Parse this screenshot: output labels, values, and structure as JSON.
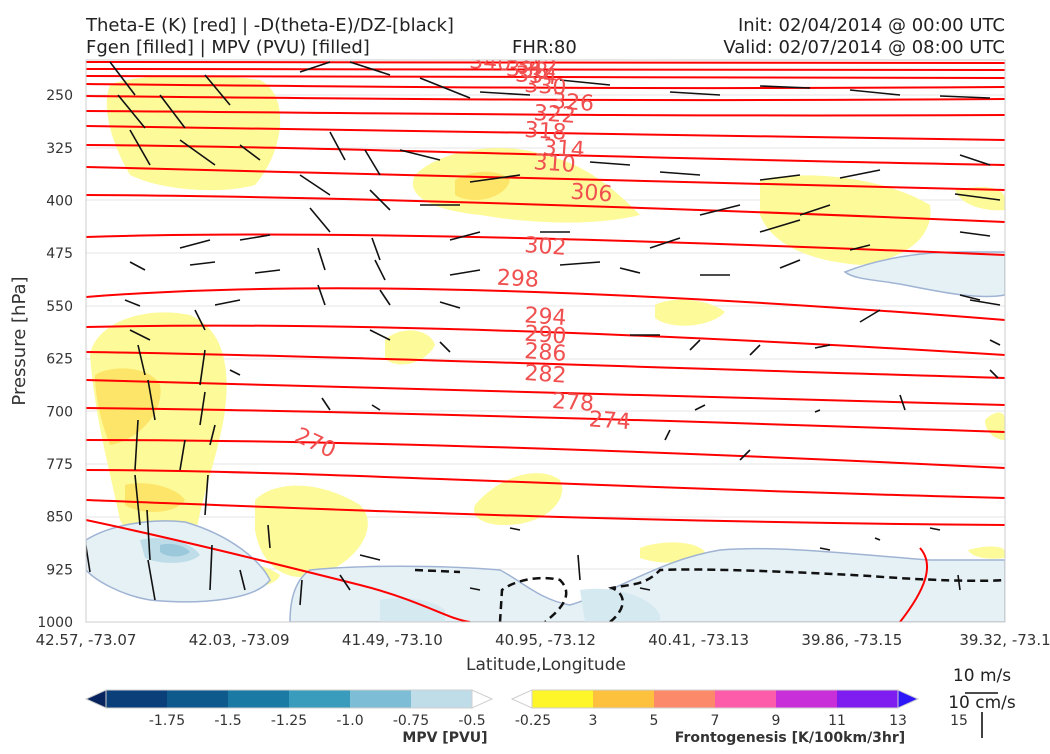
{
  "header": {
    "title_left_1": "Theta-E (K) [red] | -D(theta-E)/DZ-[black]",
    "title_left_2": "Fgen [filled] | MPV (PVU) [filled]",
    "fhr": "FHR:80",
    "init": "Init: 02/04/2014 @ 00:00 UTC",
    "valid": "Valid: 02/07/2014 @ 08:00 UTC"
  },
  "chart_data": {
    "type": "cross-section",
    "xlabel": "Latitude,Longitude",
    "ylabel": "Pressure [hPa]",
    "x_ticks": [
      "42.57, -73.07",
      "42.03, -73.09",
      "41.49, -73.10",
      "40.95, -73.12",
      "40.41, -73.13",
      "39.86, -73.15",
      "39.32, -73.1"
    ],
    "y_ticks": [
      250,
      325,
      400,
      475,
      550,
      625,
      700,
      775,
      850,
      925,
      1000
    ],
    "ylim": [
      1000,
      200
    ],
    "theta_e_labels": [
      {
        "value": "340",
        "p": 202,
        "x": 0.44
      },
      {
        "value": "342",
        "p": 208,
        "x": 0.49
      },
      {
        "value": "338",
        "p": 213,
        "x": 0.48
      },
      {
        "value": "334",
        "p": 221,
        "x": 0.49
      },
      {
        "value": "330",
        "p": 236,
        "x": 0.5
      },
      {
        "value": "326",
        "p": 259,
        "x": 0.53
      },
      {
        "value": "322",
        "p": 276,
        "x": 0.51
      },
      {
        "value": "318",
        "p": 300,
        "x": 0.5
      },
      {
        "value": "314",
        "p": 325,
        "x": 0.52
      },
      {
        "value": "310",
        "p": 346,
        "x": 0.51
      },
      {
        "value": "306",
        "p": 388,
        "x": 0.55
      },
      {
        "value": "302",
        "p": 464,
        "x": 0.5
      },
      {
        "value": "298",
        "p": 510,
        "x": 0.47
      },
      {
        "value": "294",
        "p": 564,
        "x": 0.5
      },
      {
        "value": "290",
        "p": 590,
        "x": 0.5
      },
      {
        "value": "286",
        "p": 615,
        "x": 0.5
      },
      {
        "value": "282",
        "p": 646,
        "x": 0.5
      },
      {
        "value": "278",
        "p": 686,
        "x": 0.53
      },
      {
        "value": "274",
        "p": 712,
        "x": 0.57
      },
      {
        "value": "270",
        "p": 744,
        "x": 0.25
      }
    ],
    "mpv_colorbar": {
      "label": "MPV [PVU]",
      "ticks": [
        "-1.75",
        "-1.5",
        "-1.25",
        "-1.0",
        "-0.75",
        "-0.5",
        "-0.25"
      ],
      "colors": [
        "#08245f",
        "#0b3f7a",
        "#0f5a8c",
        "#1a7aa3",
        "#3a9cbc",
        "#7dbdd6",
        "#bfdde9",
        "#ffffff"
      ]
    },
    "fgen_colorbar": {
      "label": "Frontogenesis [K/100km/3hr]",
      "ticks": [
        "3",
        "5",
        "7",
        "9",
        "11",
        "13",
        "15"
      ],
      "colors": [
        "#ffffff",
        "#fff62a",
        "#fdc13d",
        "#fc8a6a",
        "#fd5cab",
        "#c82fd8",
        "#7f1df1",
        "#2d16f7"
      ]
    },
    "wind_legend": [
      "10 m/s",
      "10 cm/s"
    ]
  }
}
